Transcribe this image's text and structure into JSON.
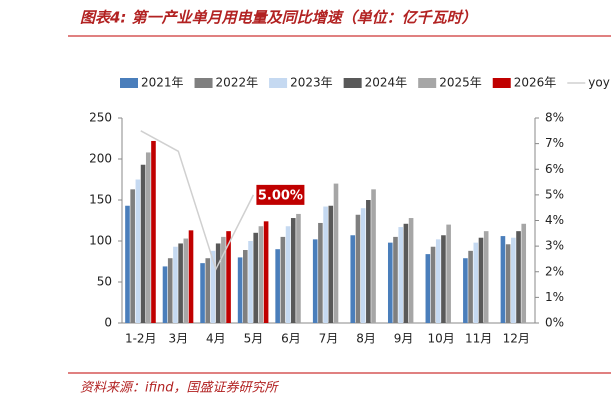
{
  "title": "图表4: 第一产业单月用电量及同比增速（单位：亿千瓦时）",
  "source": "资料来源：ifind，国盛证券研究所",
  "chart_data": {
    "type": "bar",
    "categories": [
      "1-2月",
      "3月",
      "4月",
      "5月",
      "6月",
      "7月",
      "8月",
      "9月",
      "10月",
      "11月",
      "12月"
    ],
    "series": [
      {
        "name": "2021年",
        "color": "#4a7ebb",
        "values": [
          143,
          69,
          73,
          80,
          90,
          102,
          107,
          98,
          84,
          79,
          106
        ]
      },
      {
        "name": "2022年",
        "color": "#7f7f7f",
        "values": [
          163,
          79,
          79,
          89,
          105,
          122,
          132,
          105,
          93,
          88,
          96
        ]
      },
      {
        "name": "2023年",
        "color": "#c5d9f1",
        "values": [
          175,
          93,
          88,
          100,
          118,
          142,
          140,
          117,
          102,
          98,
          104
        ]
      },
      {
        "name": "2024年",
        "color": "#595959",
        "values": [
          193,
          97,
          97,
          110,
          128,
          143,
          150,
          121,
          107,
          104,
          112
        ]
      },
      {
        "name": "2025年",
        "color": "#a6a6a6",
        "values": [
          208,
          103,
          105,
          118,
          133,
          170,
          163,
          128,
          120,
          112,
          121
        ]
      },
      {
        "name": "2026年",
        "color": "#c00000",
        "values": [
          222,
          113,
          112,
          124,
          null,
          null,
          null,
          null,
          null,
          null,
          null
        ]
      },
      {
        "name": "yoy",
        "type": "line",
        "axis": "y2",
        "color": "#d0d0d0",
        "values": [
          7.5,
          6.7,
          2.1,
          5.0,
          null,
          null,
          null,
          null,
          null,
          null,
          null
        ],
        "value_labels": [
          null,
          null,
          null,
          "5.00%",
          null,
          null,
          null,
          null,
          null,
          null,
          null
        ]
      }
    ],
    "ylim": [
      0,
      250
    ],
    "yticks": [
      0,
      50,
      100,
      150,
      200,
      250
    ],
    "y2lim": [
      0,
      8
    ],
    "y2ticks": [
      {
        "value": 0,
        "label": "0%"
      },
      {
        "value": 1,
        "label": "1%"
      },
      {
        "value": 2,
        "label": "2%"
      },
      {
        "value": 3,
        "label": "3%"
      },
      {
        "value": 4,
        "label": "4%"
      },
      {
        "value": 5,
        "label": "5%"
      },
      {
        "value": 6,
        "label": "6%"
      },
      {
        "value": 7,
        "label": "7%"
      },
      {
        "value": 8,
        "label": "8%"
      }
    ],
    "grid": false,
    "legend": "top"
  }
}
